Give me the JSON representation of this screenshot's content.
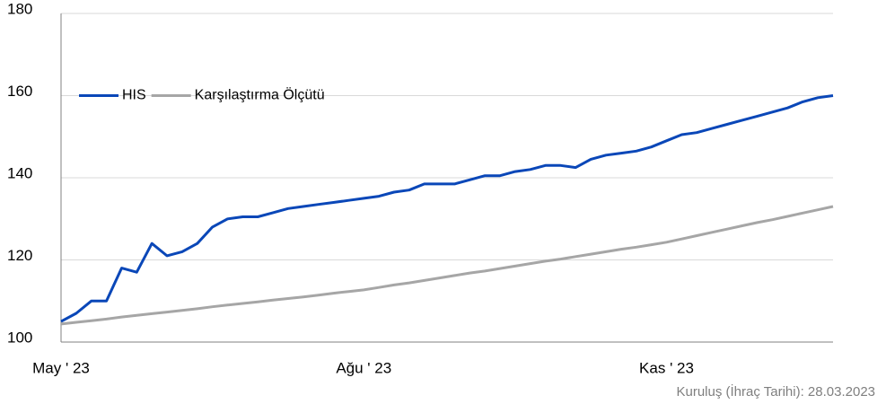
{
  "chart_data": {
    "type": "line",
    "categories": [
      "May ' 23",
      null,
      null,
      null,
      null,
      null,
      null,
      null,
      null,
      null,
      null,
      null,
      null,
      null,
      null,
      null,
      null,
      null,
      null,
      null,
      "Ağu ' 23",
      null,
      null,
      null,
      null,
      null,
      null,
      null,
      null,
      null,
      null,
      null,
      null,
      null,
      null,
      null,
      null,
      null,
      null,
      null,
      "Kas ' 23",
      null,
      null,
      null,
      null,
      null,
      null,
      null,
      null,
      null,
      null,
      null
    ],
    "series": [
      {
        "name": "HIS",
        "color": "#0a47b8",
        "values": [
          105,
          107,
          110,
          110,
          118,
          117,
          124,
          121,
          122,
          124,
          128,
          130,
          130.5,
          130.5,
          131.5,
          132.5,
          133,
          133.5,
          134,
          134.5,
          135,
          135.5,
          136.5,
          137,
          138.5,
          138.5,
          138.5,
          139.5,
          140.5,
          140.5,
          141.5,
          142,
          143,
          143,
          142.5,
          144.5,
          145.5,
          146,
          146.5,
          147.5,
          149,
          150.5,
          151,
          152,
          153,
          154,
          155,
          156,
          157,
          158.5,
          159.5,
          160
        ]
      },
      {
        "name": "Karşılaştırma Ölçütü",
        "color": "#a6a6a6",
        "values": [
          104.4,
          104.8,
          105.2,
          105.6,
          106.1,
          106.5,
          106.9,
          107.3,
          107.7,
          108.1,
          108.6,
          109,
          109.4,
          109.8,
          110.2,
          110.6,
          111,
          111.4,
          111.9,
          112.3,
          112.7,
          113.3,
          113.9,
          114.4,
          115,
          115.6,
          116.2,
          116.8,
          117.3,
          117.9,
          118.5,
          119.1,
          119.7,
          120.2,
          120.8,
          121.4,
          122,
          122.6,
          123.1,
          123.7,
          124.3,
          125.1,
          125.9,
          126.7,
          127.5,
          128.3,
          129.1,
          129.8,
          130.6,
          131.4,
          132.2,
          133
        ]
      }
    ],
    "ylim": [
      100,
      180
    ],
    "yticks": [
      100,
      120,
      140,
      160,
      180
    ],
    "grid": true,
    "note": "Kuruluş (İhraç Tarihi): 28.03.2023"
  }
}
